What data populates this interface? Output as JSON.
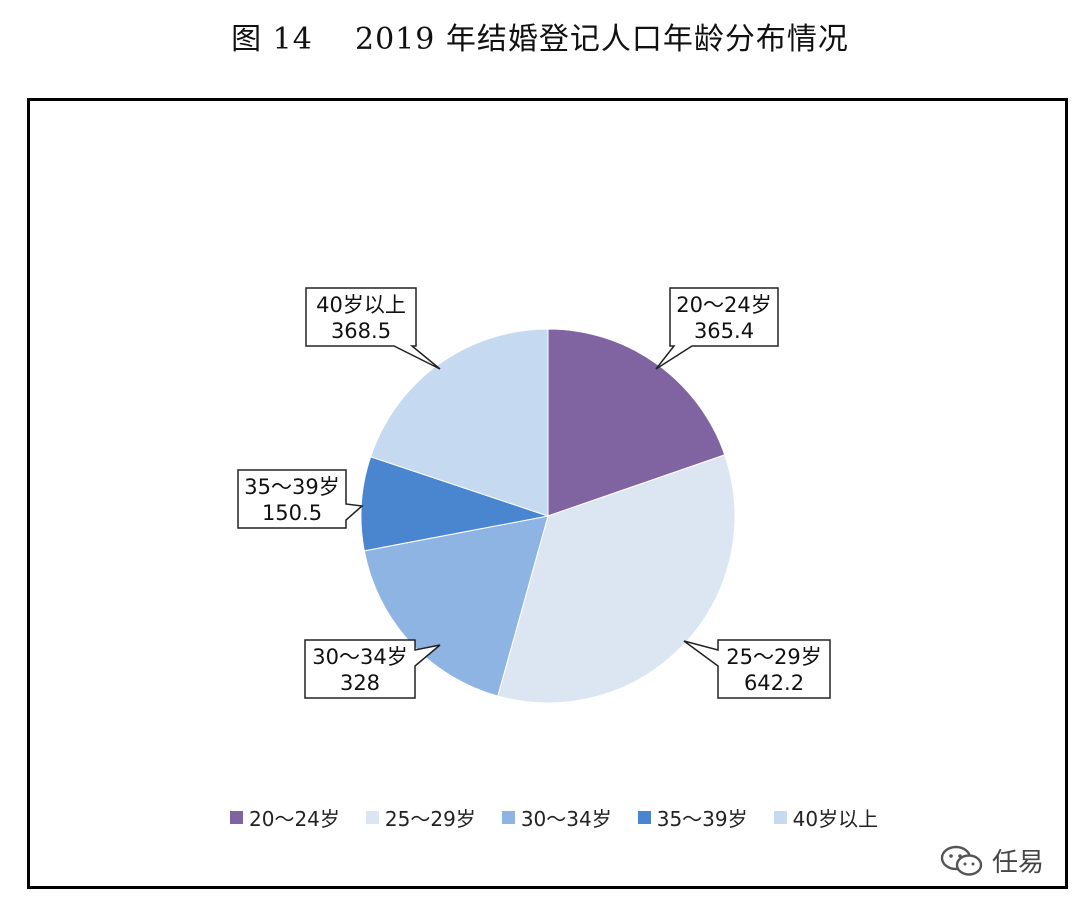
{
  "figure": {
    "title": "图 14    2019 年结婚登记人口年龄分布情况"
  },
  "chart_data": {
    "type": "pie",
    "title": "图 14    2019 年结婚登记人口年龄分布情况",
    "categories": [
      "20～24岁",
      "25～29岁",
      "30～34岁",
      "35～39岁",
      "40岁以上"
    ],
    "values": [
      365.4,
      642.2,
      328,
      150.5,
      368.5
    ],
    "value_labels": [
      "365.4",
      "642.2",
      "328",
      "150.5",
      "368.5"
    ],
    "colors": [
      "#8064a2",
      "#dce6f2",
      "#8eb4e3",
      "#4a86d0",
      "#c5d9f1"
    ],
    "legend_position": "bottom",
    "start": "12 o'clock, clockwise"
  },
  "watermark": {
    "icon": "wechat-icon",
    "text": "任易"
  }
}
